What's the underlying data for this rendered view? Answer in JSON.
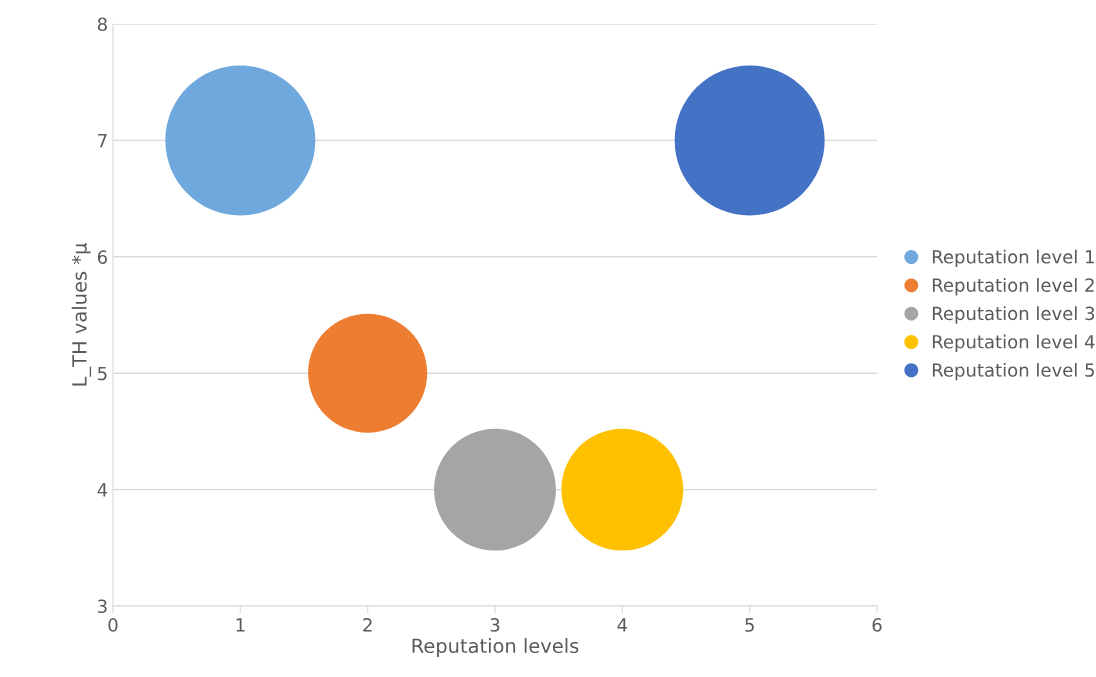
{
  "chart_data": {
    "type": "bubble",
    "xlabel": "Reputation levels",
    "ylabel": "L_TH values *μ",
    "series": [
      {
        "name": "Reputation level 1",
        "color": "#6fa8dc",
        "x": [
          1
        ],
        "values": [
          7
        ],
        "sizes": [
          1
        ]
      },
      {
        "name": "Reputation level 2",
        "color": "#ed7d31",
        "x": [
          2
        ],
        "values": [
          5
        ],
        "sizes": [
          0.63
        ]
      },
      {
        "name": "Reputation level 3",
        "color": "#a5a5a5",
        "x": [
          3
        ],
        "values": [
          4
        ],
        "sizes": [
          0.66
        ]
      },
      {
        "name": "Reputation level 4",
        "color": "#ffc000",
        "x": [
          4
        ],
        "values": [
          4
        ],
        "sizes": [
          0.66
        ]
      },
      {
        "name": "Reputation level 5",
        "color": "#4472c4",
        "x": [
          5
        ],
        "values": [
          7
        ],
        "sizes": [
          1
        ]
      }
    ],
    "xlim": [
      0,
      6
    ],
    "xticks": [
      0,
      1,
      2,
      3,
      4,
      5,
      6
    ],
    "ylim": [
      3,
      8
    ],
    "yticks": [
      3,
      4,
      5,
      6,
      7,
      8
    ],
    "grid": "y",
    "legend": "right"
  }
}
